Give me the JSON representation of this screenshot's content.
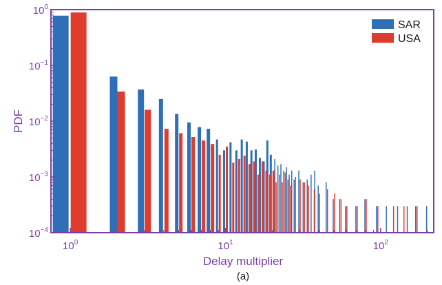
{
  "chart_data": {
    "type": "bar",
    "xlabel": "Delay multiplier",
    "ylabel": "PDF",
    "caption": "(a)",
    "x_scale": "log",
    "y_scale": "log",
    "xlim": [
      0.75,
      220
    ],
    "ylim": [
      0.0001,
      1.0
    ],
    "x_ticks": [
      {
        "base": "10",
        "exp": "0",
        "value": 1
      },
      {
        "base": "10",
        "exp": "1",
        "value": 10
      },
      {
        "base": "10",
        "exp": "2",
        "value": 100
      }
    ],
    "y_ticks": [
      {
        "base": "10",
        "exp": "0",
        "value": 1
      },
      {
        "base": "10",
        "exp": "−1",
        "value": 0.1
      },
      {
        "base": "10",
        "exp": "−2",
        "value": 0.01
      },
      {
        "base": "10",
        "exp": "−3",
        "value": 0.001
      },
      {
        "base": "10",
        "exp": "−4",
        "value": 0.0001
      }
    ],
    "grid": false,
    "legend_position": "top-right",
    "colors": {
      "SAR": "#2f6fb8",
      "USA": "#e03c2e",
      "axes": "#7b3fa6"
    },
    "series": [
      {
        "name": "SAR",
        "points": [
          [
            1,
            0.78
          ],
          [
            2,
            0.063
          ],
          [
            3,
            0.037
          ],
          [
            4,
            0.025
          ],
          [
            5,
            0.0135
          ],
          [
            6,
            0.0095
          ],
          [
            7,
            0.0078
          ],
          [
            8,
            0.0073
          ],
          [
            9,
            0.0047
          ],
          [
            10,
            0.003
          ],
          [
            11,
            0.0042
          ],
          [
            12,
            0.003
          ],
          [
            13,
            0.0047
          ],
          [
            14,
            0.0043
          ],
          [
            15,
            0.003
          ],
          [
            16,
            0.0031
          ],
          [
            17,
            0.0022
          ],
          [
            18,
            0.0019
          ],
          [
            19,
            0.0045
          ],
          [
            20,
            0.0025
          ],
          [
            21,
            0.0021
          ],
          [
            22,
            0.0016
          ],
          [
            23,
            0.0017
          ],
          [
            24,
            0.0013
          ],
          [
            25,
            0.0015
          ],
          [
            26,
            0.0011
          ],
          [
            27,
            0.0013
          ],
          [
            28,
            0.0009
          ],
          [
            30,
            0.0013
          ],
          [
            32,
            0.0008
          ],
          [
            34,
            0.0009
          ],
          [
            36,
            0.0011
          ],
          [
            38,
            0.0013
          ],
          [
            40,
            0.0007
          ],
          [
            45,
            0.0008
          ],
          [
            50,
            0.0004
          ],
          [
            55,
            0.0004
          ],
          [
            60,
            0.0003
          ],
          [
            70,
            0.0003
          ],
          [
            80,
            0.0004
          ],
          [
            95,
            0.0003
          ],
          [
            110,
            0.0003
          ],
          [
            130,
            0.0003
          ],
          [
            150,
            0.0003
          ],
          [
            170,
            0.0003
          ],
          [
            200,
            0.0003
          ]
        ]
      },
      {
        "name": "USA",
        "points": [
          [
            1,
            0.89
          ],
          [
            2,
            0.034
          ],
          [
            3,
            0.016
          ],
          [
            4,
            0.0073
          ],
          [
            5,
            0.0061
          ],
          [
            6,
            0.0052
          ],
          [
            7,
            0.0045
          ],
          [
            8,
            0.0039
          ],
          [
            9,
            0.0025
          ],
          [
            10,
            0.0035
          ],
          [
            11,
            0.0018
          ],
          [
            12,
            0.0021
          ],
          [
            13,
            0.0024
          ],
          [
            14,
            0.0017
          ],
          [
            15,
            0.0019
          ],
          [
            16,
            0.0011
          ],
          [
            17,
            0.0019
          ],
          [
            18,
            0.0013
          ],
          [
            19,
            0.0011
          ],
          [
            20,
            0.0013
          ],
          [
            21,
            0.0008
          ],
          [
            22,
            0.0011
          ],
          [
            23,
            0.0008
          ],
          [
            24,
            0.0012
          ],
          [
            25,
            0.0009
          ],
          [
            26,
            0.0007
          ],
          [
            28,
            0.001
          ],
          [
            30,
            0.0009
          ],
          [
            32,
            0.0008
          ],
          [
            34,
            0.0007
          ],
          [
            37,
            0.0006
          ],
          [
            40,
            0.0005
          ],
          [
            45,
            0.0006
          ],
          [
            50,
            0.0005
          ],
          [
            55,
            0.0004
          ],
          [
            60,
            0.0003
          ],
          [
            70,
            0.0003
          ],
          [
            80,
            0.0004
          ],
          [
            95,
            0.0003
          ],
          [
            120,
            0.0003
          ],
          [
            140,
            0.0003
          ],
          [
            170,
            0.0003
          ]
        ]
      }
    ]
  }
}
